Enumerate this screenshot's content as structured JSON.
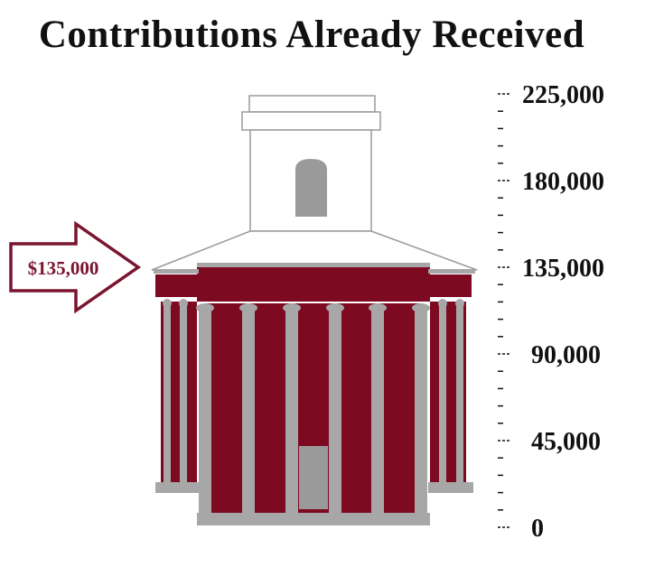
{
  "chart_data": {
    "type": "thermometer",
    "title": "Contributions Already Received",
    "value": 135000,
    "value_label": "$135,000",
    "ylim": [
      0,
      225000
    ],
    "major_ticks": [
      0,
      45000,
      90000,
      135000,
      180000,
      225000
    ],
    "tick_labels": [
      "0",
      "45,000",
      "90,000",
      "135,000",
      "180,000",
      "225,000"
    ],
    "minor_ticks_per_interval": 4,
    "grid": false,
    "legend": "none"
  },
  "colors": {
    "fill": "#7e0a22",
    "column": "#a7a7a7",
    "outline": "#9a9a9a",
    "arrow": "#7a1530",
    "text": "#111111"
  },
  "icons": {
    "arrow": "right-arrow-icon",
    "building": "capitol-building-icon"
  }
}
